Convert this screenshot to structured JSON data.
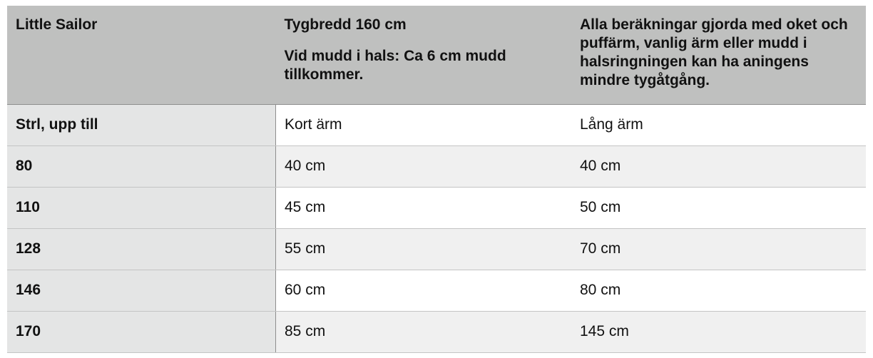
{
  "header": {
    "col0": "Little Sailor",
    "col1_line1": "Tygbredd 160 cm",
    "col1_line2": "Vid mudd i hals: Ca 6 cm mudd tillkommer.",
    "col2": "Alla beräkningar gjorda med oket och puffärm, vanlig ärm eller mudd i halsringningen kan ha aningens mindre tygåtgång."
  },
  "rows": [
    {
      "size": "Strl, upp till",
      "short": "Kort ärm",
      "long": "Lång ärm"
    },
    {
      "size": "80",
      "short": "40 cm",
      "long": "40 cm"
    },
    {
      "size": "110",
      "short": "45 cm",
      "long": "50 cm"
    },
    {
      "size": "128",
      "short": "55 cm",
      "long": "70 cm"
    },
    {
      "size": "146",
      "short": "60 cm",
      "long": "80 cm"
    },
    {
      "size": "170",
      "short": "85 cm",
      "long": "145 cm"
    }
  ]
}
